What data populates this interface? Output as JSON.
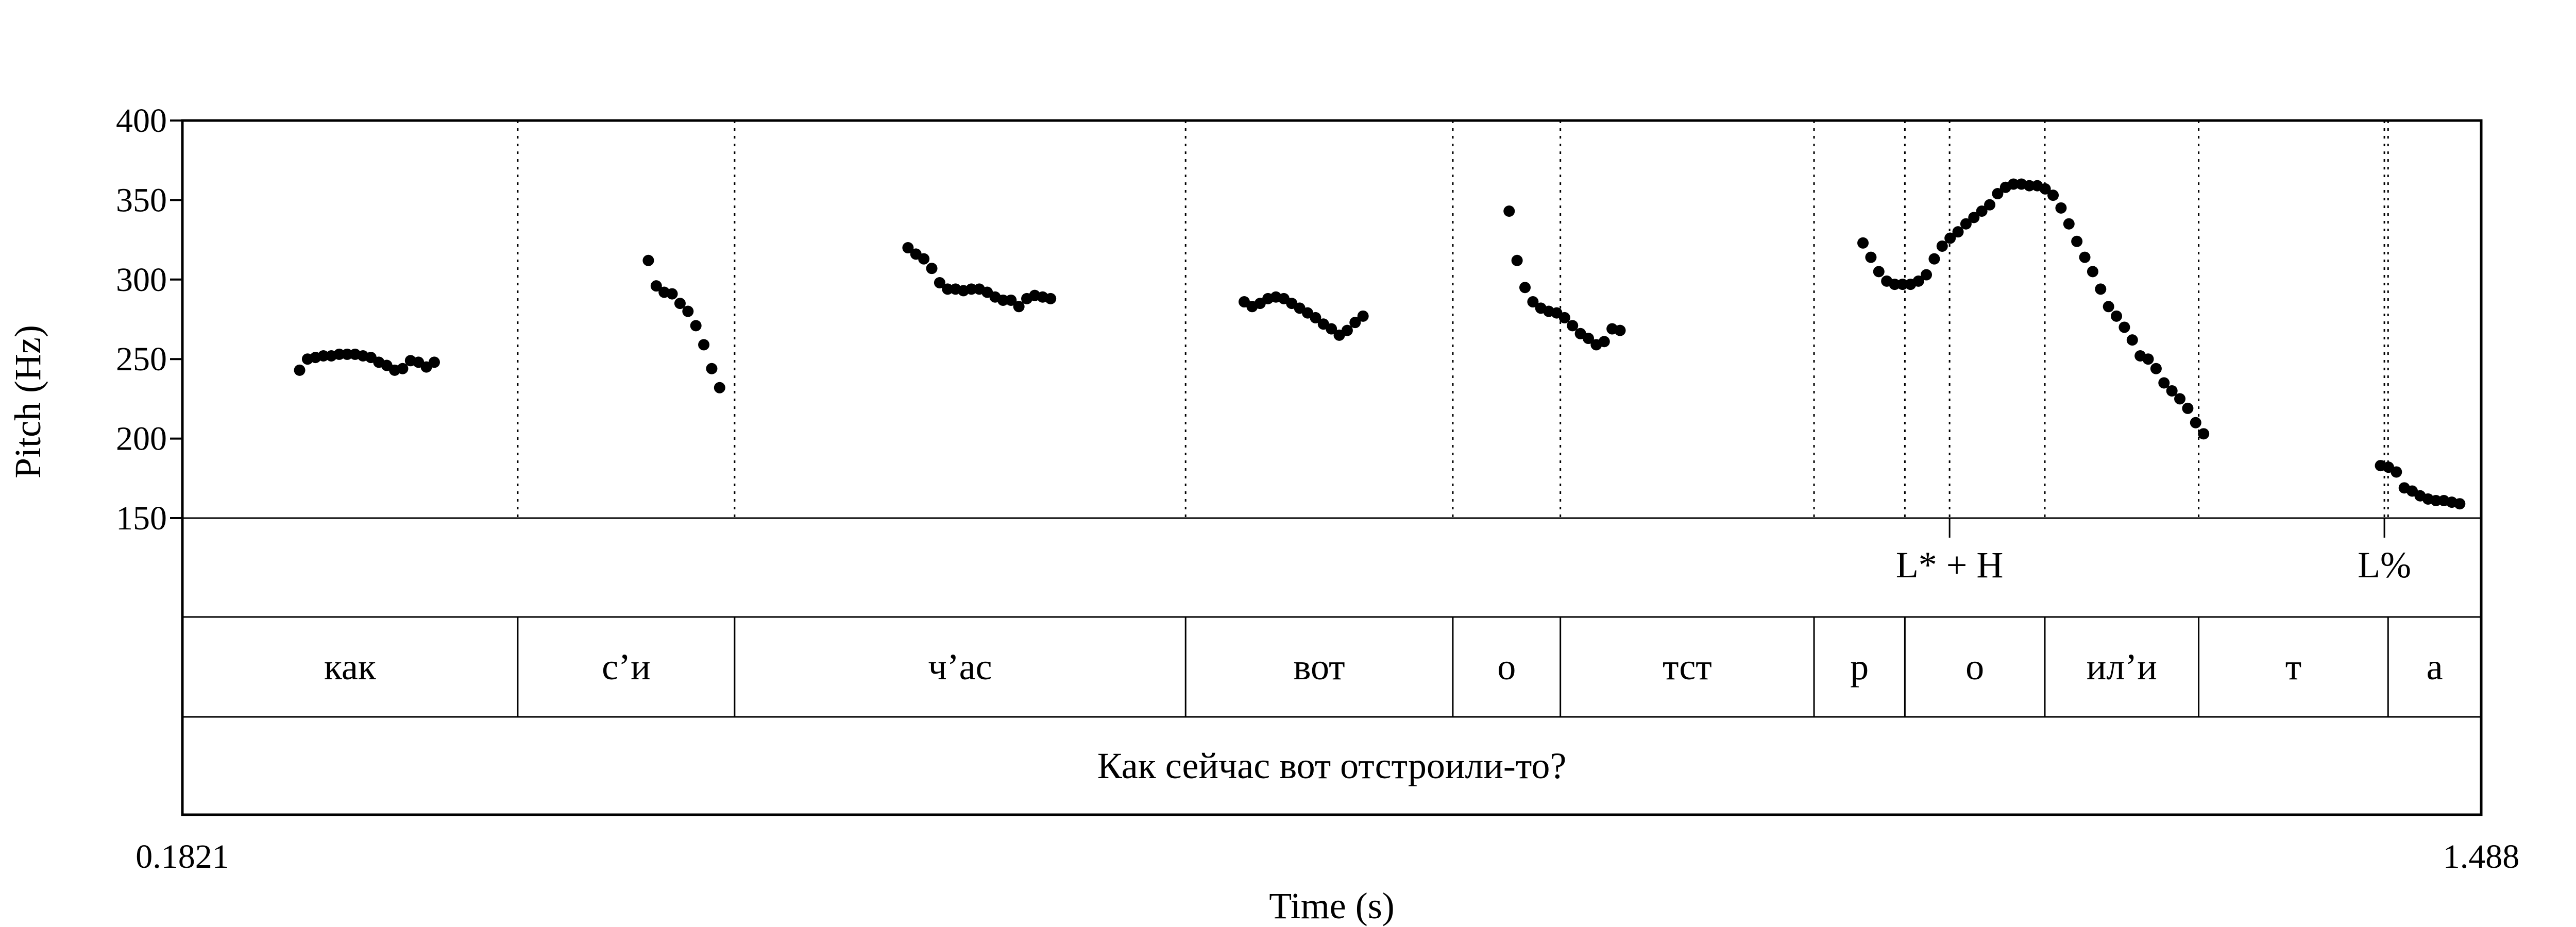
{
  "chart_data": {
    "type": "scatter",
    "title": "",
    "xlabel": "Time (s)",
    "ylabel": "Pitch (Hz)",
    "xlim": [
      0.1821,
      1.488
    ],
    "ylim": [
      150,
      400
    ],
    "x_tick_labels": [
      "0.1821",
      "1.488"
    ],
    "y_tick_labels": [
      "400",
      "350",
      "300",
      "250",
      "200",
      "150"
    ],
    "y_ticks": [
      400,
      350,
      300,
      250,
      200,
      150
    ],
    "pitch_points": [
      [
        0.2487,
        243
      ],
      [
        0.2532,
        250
      ],
      [
        0.2577,
        251
      ],
      [
        0.2622,
        252
      ],
      [
        0.2667,
        252
      ],
      [
        0.2712,
        253
      ],
      [
        0.2757,
        253
      ],
      [
        0.2802,
        253
      ],
      [
        0.2847,
        252
      ],
      [
        0.2892,
        251
      ],
      [
        0.2937,
        248
      ],
      [
        0.2982,
        246
      ],
      [
        0.3027,
        243
      ],
      [
        0.3072,
        244
      ],
      [
        0.3117,
        249
      ],
      [
        0.3162,
        248
      ],
      [
        0.3207,
        245
      ],
      [
        0.3252,
        248
      ],
      [
        0.4468,
        312
      ],
      [
        0.4513,
        296
      ],
      [
        0.4558,
        292
      ],
      [
        0.4603,
        291
      ],
      [
        0.4648,
        285
      ],
      [
        0.4693,
        280
      ],
      [
        0.4738,
        271
      ],
      [
        0.4783,
        259
      ],
      [
        0.4828,
        244
      ],
      [
        0.4873,
        232
      ],
      [
        0.5943,
        320
      ],
      [
        0.5988,
        316
      ],
      [
        0.6033,
        313
      ],
      [
        0.6078,
        307
      ],
      [
        0.6123,
        298
      ],
      [
        0.6168,
        294
      ],
      [
        0.6213,
        294
      ],
      [
        0.6258,
        293
      ],
      [
        0.6303,
        294
      ],
      [
        0.6348,
        294
      ],
      [
        0.6393,
        292
      ],
      [
        0.6438,
        289
      ],
      [
        0.6483,
        287
      ],
      [
        0.6528,
        287
      ],
      [
        0.6573,
        283
      ],
      [
        0.6618,
        288
      ],
      [
        0.6663,
        290
      ],
      [
        0.6708,
        289
      ],
      [
        0.6753,
        288
      ],
      [
        0.7853,
        286
      ],
      [
        0.7898,
        283
      ],
      [
        0.7943,
        285
      ],
      [
        0.7988,
        288
      ],
      [
        0.8033,
        289
      ],
      [
        0.8078,
        288
      ],
      [
        0.8123,
        285
      ],
      [
        0.8168,
        282
      ],
      [
        0.8213,
        279
      ],
      [
        0.8258,
        276
      ],
      [
        0.8303,
        272
      ],
      [
        0.8348,
        269
      ],
      [
        0.8393,
        265
      ],
      [
        0.8438,
        268
      ],
      [
        0.8483,
        273
      ],
      [
        0.8528,
        277
      ],
      [
        0.9358,
        343
      ],
      [
        0.9403,
        312
      ],
      [
        0.9448,
        295
      ],
      [
        0.9493,
        286
      ],
      [
        0.9538,
        282
      ],
      [
        0.9583,
        280
      ],
      [
        0.9628,
        279
      ],
      [
        0.9673,
        276
      ],
      [
        0.9718,
        271
      ],
      [
        0.9763,
        266
      ],
      [
        0.9808,
        263
      ],
      [
        0.9853,
        259
      ],
      [
        0.9898,
        261
      ],
      [
        0.9943,
        269
      ],
      [
        0.9988,
        268
      ],
      [
        1.1368,
        323
      ],
      [
        1.1413,
        314
      ],
      [
        1.1458,
        305
      ],
      [
        1.1503,
        299
      ],
      [
        1.1548,
        297
      ],
      [
        1.1593,
        297
      ],
      [
        1.1638,
        297
      ],
      [
        1.1683,
        299
      ],
      [
        1.1728,
        303
      ],
      [
        1.1773,
        313
      ],
      [
        1.1818,
        321
      ],
      [
        1.1863,
        326
      ],
      [
        1.1908,
        330
      ],
      [
        1.1953,
        335
      ],
      [
        1.1998,
        339
      ],
      [
        1.2043,
        343
      ],
      [
        1.2088,
        347
      ],
      [
        1.2133,
        354
      ],
      [
        1.2178,
        358
      ],
      [
        1.2223,
        360
      ],
      [
        1.2268,
        360
      ],
      [
        1.2313,
        359
      ],
      [
        1.2358,
        359
      ],
      [
        1.2403,
        357
      ],
      [
        1.2448,
        353
      ],
      [
        1.2493,
        345
      ],
      [
        1.2538,
        335
      ],
      [
        1.2583,
        324
      ],
      [
        1.2628,
        314
      ],
      [
        1.2673,
        305
      ],
      [
        1.2718,
        294
      ],
      [
        1.2763,
        283
      ],
      [
        1.2808,
        277
      ],
      [
        1.2853,
        270
      ],
      [
        1.2898,
        262
      ],
      [
        1.2943,
        252
      ],
      [
        1.2988,
        250
      ],
      [
        1.3033,
        244
      ],
      [
        1.3078,
        235
      ],
      [
        1.3123,
        230
      ],
      [
        1.3168,
        225
      ],
      [
        1.3213,
        219
      ],
      [
        1.3258,
        210
      ],
      [
        1.3303,
        203
      ],
      [
        1.4308,
        183
      ],
      [
        1.4353,
        182
      ],
      [
        1.4398,
        179
      ],
      [
        1.4443,
        169
      ],
      [
        1.4488,
        167
      ],
      [
        1.4533,
        164
      ],
      [
        1.4578,
        162
      ],
      [
        1.4623,
        161
      ],
      [
        1.4668,
        161
      ],
      [
        1.4713,
        160
      ],
      [
        1.4758,
        159
      ]
    ],
    "tiers": [
      {
        "name": "tones",
        "intervals": [],
        "points": [
          {
            "t": 1.186,
            "label": "L* + H"
          },
          {
            "t": 1.433,
            "label": "L%"
          }
        ]
      },
      {
        "name": "segments",
        "intervals": [
          {
            "from": 0.1821,
            "to": 0.3726,
            "label": "как"
          },
          {
            "from": 0.3726,
            "to": 0.4958,
            "label": "с’и"
          },
          {
            "from": 0.4958,
            "to": 0.752,
            "label": "ч’ас"
          },
          {
            "from": 0.752,
            "to": 0.9038,
            "label": "вот"
          },
          {
            "from": 0.9038,
            "to": 0.9649,
            "label": "о"
          },
          {
            "from": 0.9649,
            "to": 1.109,
            "label": "тст"
          },
          {
            "from": 1.109,
            "to": 1.1606,
            "label": "р"
          },
          {
            "from": 1.1606,
            "to": 1.2401,
            "label": "о"
          },
          {
            "from": 1.2401,
            "to": 1.3275,
            "label": "ил’и"
          },
          {
            "from": 1.3275,
            "to": 1.4351,
            "label": "т"
          },
          {
            "from": 1.4351,
            "to": 1.488,
            "label": "а"
          }
        ]
      },
      {
        "name": "utterance",
        "intervals": [
          {
            "from": 0.1821,
            "to": 1.488,
            "label": "Как сейчас вот отстроили-то?"
          }
        ]
      }
    ],
    "grid": false,
    "legend": "none"
  }
}
